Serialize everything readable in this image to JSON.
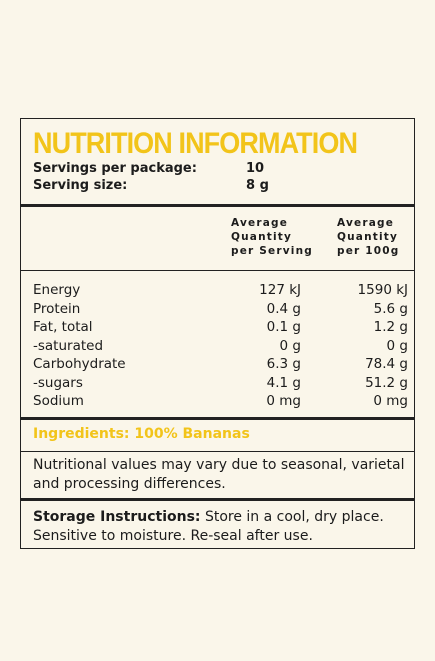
{
  "title": "NUTRITION INFORMATION",
  "servings": [
    {
      "label": "Servings per package:",
      "value": "10"
    },
    {
      "label": "Serving size:",
      "value": "8 g"
    }
  ],
  "table": {
    "headers": [
      [
        "Average",
        "Quantity",
        "per Serving"
      ],
      [
        "Average",
        "Quantity",
        "per 100g"
      ]
    ],
    "rows": [
      [
        "Energy",
        "127 kJ",
        "1590 kJ"
      ],
      [
        "Protein",
        "0.4 g",
        "5.6 g"
      ],
      [
        "Fat, total",
        "0.1 g",
        "1.2 g"
      ],
      [
        "-saturated",
        "0 g",
        "0 g"
      ],
      [
        "Carbohydrate",
        "6.3 g",
        "78.4 g"
      ],
      [
        "-sugars",
        "4.1 g",
        "51.2 g"
      ],
      [
        "Sodium",
        "0 mg",
        "0 mg"
      ]
    ]
  },
  "ingredients": "Ingredients: 100% Bananas",
  "note": "Nutritional values may vary due to seasonal, varietal and processing differences.",
  "storage": {
    "heading": "Storage Instructions:",
    "text": "Store in a cool, dry place. Sensitive to moisture. Re-seal after use."
  }
}
